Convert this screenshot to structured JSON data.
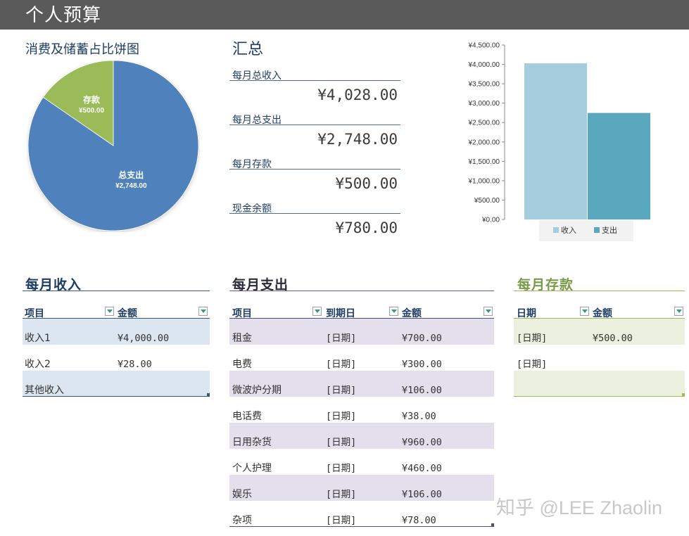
{
  "header": {
    "title": "个人预算"
  },
  "pie": {
    "title": "消费及储蓄占比饼图",
    "slices": [
      {
        "label": "总支出",
        "value_text": "¥2,748.00",
        "value": 2748,
        "color": "#4f81bd"
      },
      {
        "label": "存款",
        "value_text": "¥500.00",
        "value": 500,
        "color": "#9bbb59"
      }
    ]
  },
  "summary": {
    "title": "汇总",
    "items": [
      {
        "label": "每月总收入",
        "value": "¥4,028.00"
      },
      {
        "label": "每月总支出",
        "value": "¥2,748.00"
      },
      {
        "label": "每月存款",
        "value": "¥500.00"
      },
      {
        "label": "现金余额",
        "value": "¥780.00"
      }
    ]
  },
  "chart_data": {
    "type": "bar",
    "categories": [
      ""
    ],
    "series": [
      {
        "name": "收入",
        "values": [
          4028
        ],
        "color": "#a5cddd"
      },
      {
        "name": "支出",
        "values": [
          2748
        ],
        "color": "#5aa8bd"
      }
    ],
    "ylim": [
      0,
      4500
    ],
    "y_ticks": [
      "¥0.00",
      "¥500.00",
      "¥1,000.00",
      "¥1,500.00",
      "¥2,000.00",
      "¥2,500.00",
      "¥3,000.00",
      "¥3,500.00",
      "¥4,000.00",
      "¥4,500.00"
    ],
    "legend_position": "bottom",
    "grid": false
  },
  "income": {
    "title": "每月收入",
    "headers": [
      "项目",
      "金额"
    ],
    "rows": [
      [
        "收入1",
        "¥4,000.00"
      ],
      [
        "收入2",
        "¥28.00"
      ],
      [
        "其他收入",
        ""
      ]
    ]
  },
  "expense": {
    "title": "每月支出",
    "headers": [
      "项目",
      "到期日",
      "金额"
    ],
    "rows": [
      [
        "租金",
        "[日期]",
        "¥700.00"
      ],
      [
        "电费",
        "[日期]",
        "¥300.00"
      ],
      [
        "微波炉分期",
        "[日期]",
        "¥106.00"
      ],
      [
        "电话费",
        "[日期]",
        "¥38.00"
      ],
      [
        "日用杂货",
        "[日期]",
        "¥960.00"
      ],
      [
        "个人护理",
        "[日期]",
        "¥460.00"
      ],
      [
        "娱乐",
        "[日期]",
        "¥106.00"
      ],
      [
        "杂项",
        "[日期]",
        "¥78.00"
      ]
    ]
  },
  "savings": {
    "title": "每月存款",
    "headers": [
      "日期",
      "金额"
    ],
    "rows": [
      [
        "[日期]",
        "¥500.00"
      ],
      [
        "[日期]",
        ""
      ],
      [
        "",
        ""
      ]
    ]
  },
  "watermark": "知乎 @LEE Zhaolin"
}
